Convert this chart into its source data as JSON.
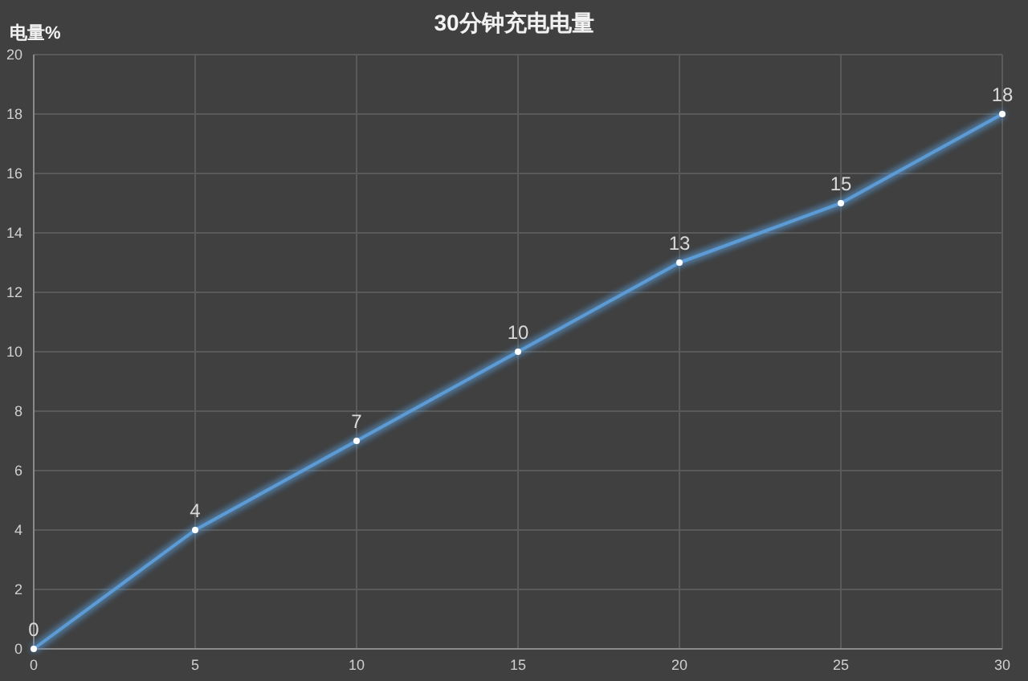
{
  "chart_data": {
    "type": "line",
    "title": "30分钟充电电量",
    "ylabel": "电量%",
    "x": [
      0,
      5,
      10,
      15,
      20,
      25,
      30
    ],
    "series": [
      {
        "color": "#5b9bd5",
        "values": [
          0,
          4,
          7,
          10,
          13,
          15,
          18
        ]
      }
    ],
    "xlim": [
      0,
      30
    ],
    "xticks": [
      0,
      5,
      10,
      15,
      20,
      25,
      30
    ],
    "ylim": [
      0,
      20
    ],
    "yticks": [
      0,
      2,
      4,
      6,
      8,
      10,
      12,
      14,
      16,
      18,
      20
    ],
    "grid": true,
    "marker": "circle",
    "data_labels": true
  }
}
